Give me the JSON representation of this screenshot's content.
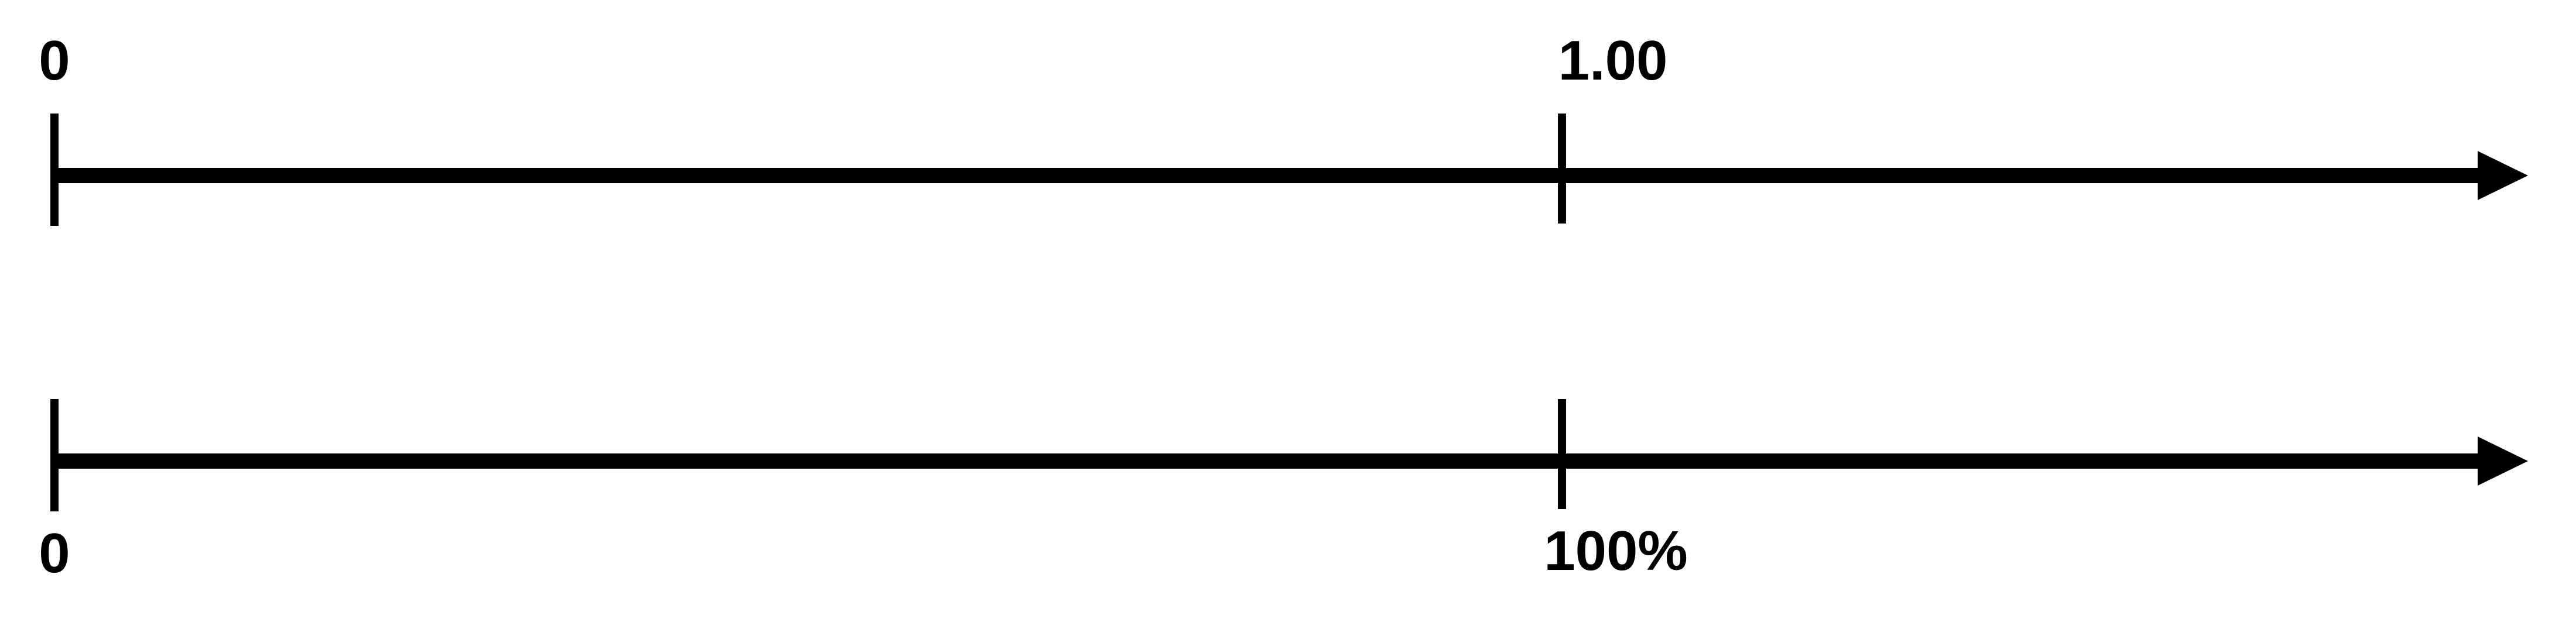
{
  "colors": {
    "line": "#000000",
    "background": "#ffffff"
  },
  "number_lines": [
    {
      "id": "decimal",
      "ticks": [
        {
          "value": 0,
          "label": "0"
        },
        {
          "value": 1,
          "label": "1.00"
        }
      ]
    },
    {
      "id": "percent",
      "ticks": [
        {
          "value": 0,
          "label": "0"
        },
        {
          "value": 1,
          "label": "100%"
        }
      ]
    }
  ]
}
